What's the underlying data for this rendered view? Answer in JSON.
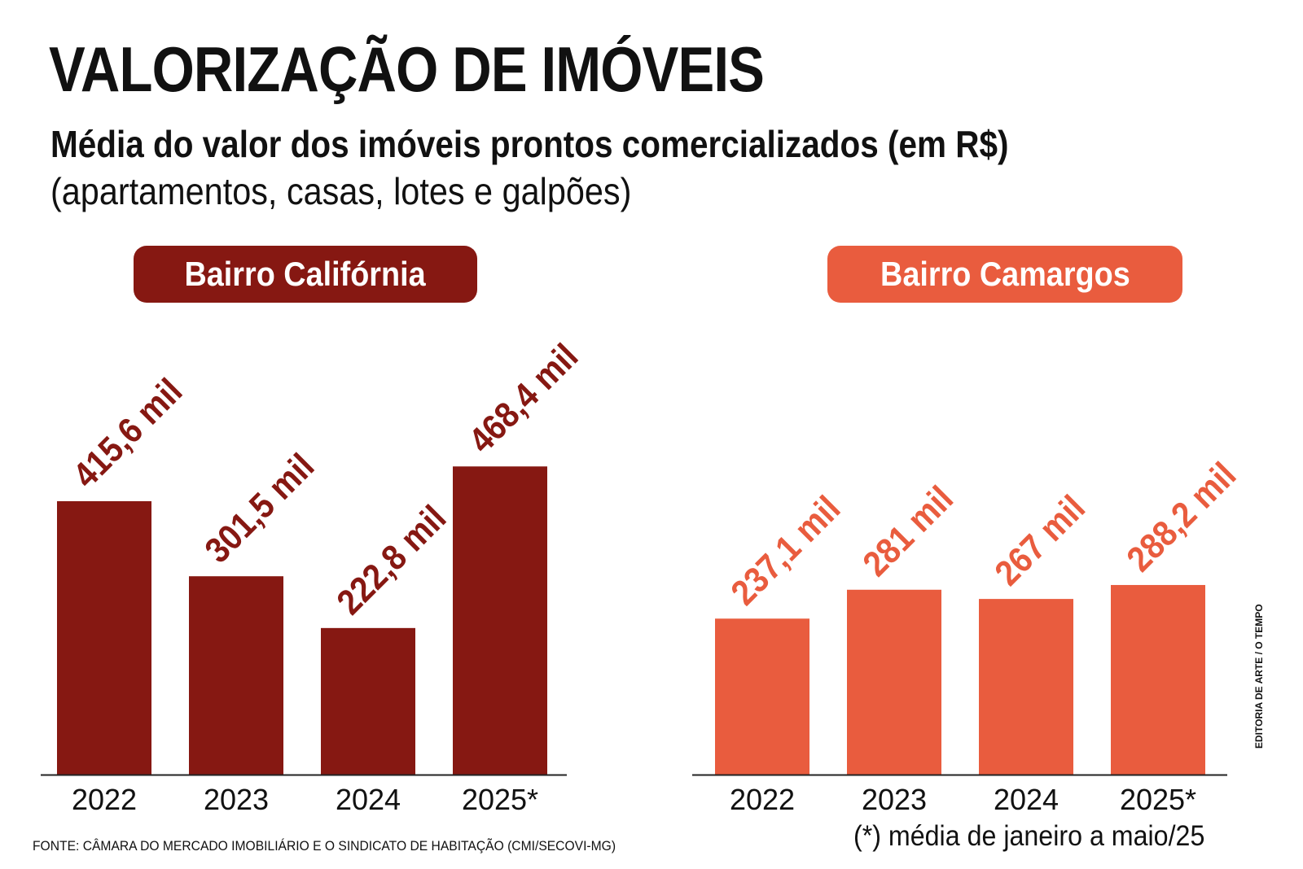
{
  "title": "VALORIZAÇÃO DE IMÓVEIS",
  "subtitle": "Média do valor dos imóveis prontos comercializados (em R$)",
  "subnote": "(apartamentos, casas, lotes e galpões)",
  "source": "FONTE: CÂMARA DO MERCADO IMOBILIÁRIO E O SINDICATO DE HABITAÇÃO (CMI/SECOVI-MG)",
  "footnote": "(*) média de janeiro a maio/25",
  "credit": "EDITORIA DE ARTE / O TEMPO",
  "chart_data": [
    {
      "type": "bar",
      "title": "Bairro Califórnia",
      "color": "#861812",
      "categories": [
        "2022",
        "2023",
        "2024",
        "2025*"
      ],
      "values": [
        415.6,
        301.5,
        222.8,
        468.4
      ],
      "labels": [
        "415,6 mil",
        "301,5 mil",
        "222,8 mil",
        "468,4 mil"
      ]
    },
    {
      "type": "bar",
      "title": "Bairro Camargos",
      "color": "#e95c3e",
      "categories": [
        "2022",
        "2023",
        "2024",
        "2025*"
      ],
      "values": [
        237.1,
        281,
        267,
        288.2
      ],
      "labels": [
        "237,1 mil",
        "281 mil",
        "267 mil",
        "288,2 mil"
      ]
    }
  ]
}
